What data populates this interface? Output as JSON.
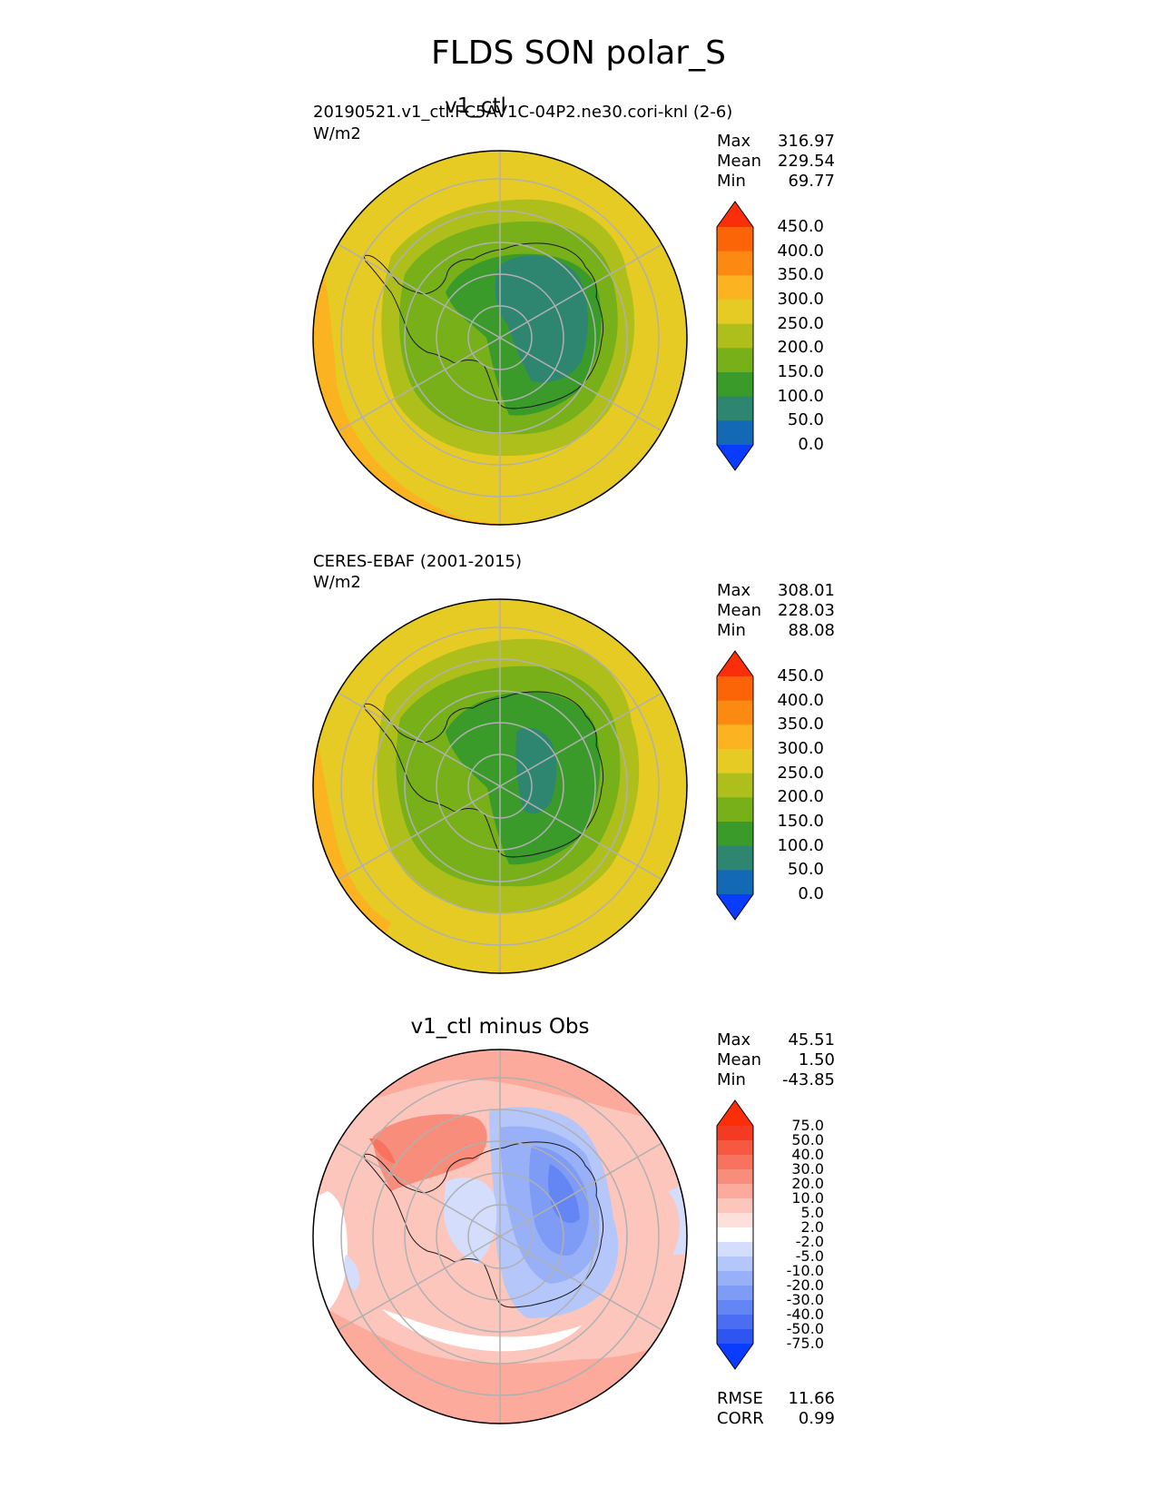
{
  "figure_title": "FLDS SON polar_S",
  "panels": [
    {
      "title": "v1_ctl",
      "subtitle_left": "20190521.v1_ctl.FC5AV1C-04P2.ne30.cori-knl (2-6)",
      "units": "W/m2",
      "stats": {
        "max_label": "Max",
        "max": "316.97",
        "mean_label": "Mean",
        "mean": "229.54",
        "min_label": "Min",
        "min": "69.77"
      }
    },
    {
      "title": "",
      "subtitle_left": "CERES-EBAF (2001-2015)",
      "units": "W/m2",
      "stats": {
        "max_label": "Max",
        "max": "308.01",
        "mean_label": "Mean",
        "mean": "228.03",
        "min_label": "Min",
        "min": "88.08"
      }
    },
    {
      "title": "v1_ctl minus Obs",
      "subtitle_left": "",
      "units": "",
      "stats": {
        "max_label": "Max",
        "max": "45.51",
        "mean_label": "Mean",
        "mean": "1.50",
        "min_label": "Min",
        "min": "-43.85"
      },
      "extra_stats": {
        "rmse_label": "RMSE",
        "rmse": "11.66",
        "corr_label": "CORR",
        "corr": "0.99"
      }
    }
  ],
  "chart_data": [
    {
      "type": "heatmap",
      "projection": "south polar stereographic",
      "title": "v1_ctl",
      "colorbar": {
        "levels": [
          "0.0",
          "50.0",
          "100.0",
          "150.0",
          "200.0",
          "250.0",
          "300.0",
          "350.0",
          "400.0",
          "450.0"
        ],
        "colors": [
          "#0a3cff",
          "#1469b4",
          "#2e8670",
          "#3a9b2a",
          "#78b01a",
          "#aebf1c",
          "#e6cb24",
          "#fbb321",
          "#fc8a12",
          "#fc6408",
          "#fa2f0a"
        ],
        "extend": "both"
      },
      "stats": {
        "max": 316.97,
        "mean": 229.54,
        "min": 69.77
      },
      "units": "W/m2"
    },
    {
      "type": "heatmap",
      "projection": "south polar stereographic",
      "title": "CERES-EBAF (2001-2015)",
      "colorbar": {
        "levels": [
          "0.0",
          "50.0",
          "100.0",
          "150.0",
          "200.0",
          "250.0",
          "300.0",
          "350.0",
          "400.0",
          "450.0"
        ],
        "colors": [
          "#0a3cff",
          "#1469b4",
          "#2e8670",
          "#3a9b2a",
          "#78b01a",
          "#aebf1c",
          "#e6cb24",
          "#fbb321",
          "#fc8a12",
          "#fc6408",
          "#fa2f0a"
        ],
        "extend": "both"
      },
      "stats": {
        "max": 308.01,
        "mean": 228.03,
        "min": 88.08
      },
      "units": "W/m2"
    },
    {
      "type": "heatmap",
      "projection": "south polar stereographic",
      "title": "v1_ctl minus Obs",
      "colorbar": {
        "levels": [
          "-75.0",
          "-50.0",
          "-40.0",
          "-30.0",
          "-20.0",
          "-10.0",
          "-5.0",
          "-2.0",
          "2.0",
          "5.0",
          "10.0",
          "20.0",
          "30.0",
          "40.0",
          "50.0",
          "75.0"
        ],
        "colors": [
          "#0a3cff",
          "#2e55f0",
          "#4a6df2",
          "#6485f4",
          "#7e9bf6",
          "#98b0f8",
          "#b5c6fa",
          "#d4defc",
          "#ffffff",
          "#fde0dc",
          "#fcc6bd",
          "#fbaa9c",
          "#f98d7c",
          "#f8735f",
          "#f65842",
          "#f43a22",
          "#fa2f0a"
        ],
        "extend": "both"
      },
      "stats": {
        "max": 45.51,
        "mean": 1.5,
        "min": -43.85,
        "rmse": 11.66,
        "corr": 0.99
      }
    }
  ]
}
